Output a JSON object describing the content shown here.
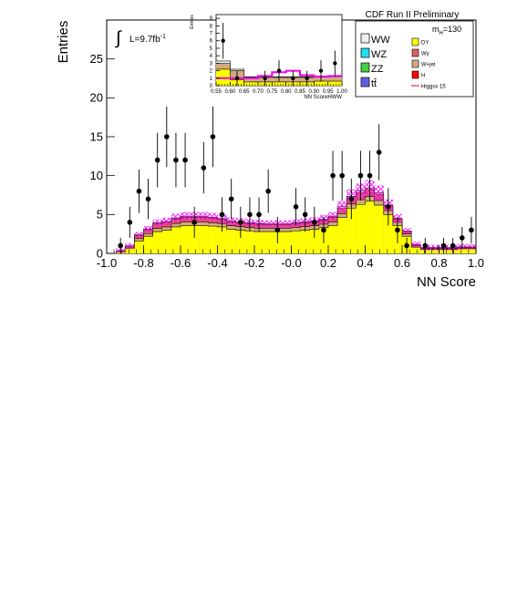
{
  "chart_data": {
    "type": "histogram",
    "title": "CDF Run II Preliminary",
    "xlabel": "NN Score",
    "ylabel": "Entries",
    "xlim": [
      -1.0,
      1.0
    ],
    "ylim": [
      0,
      30
    ],
    "xticks": [
      "-1.0",
      "-0.8",
      "-0.6",
      "-0.4",
      "-0.2",
      "-0.0",
      "0.2",
      "0.4",
      "0.6",
      "0.8",
      "1.0"
    ],
    "yticks": [
      "0",
      "5",
      "10",
      "15",
      "20",
      "25"
    ],
    "luminosity_text": "L=9.7fb",
    "luminosity_sup": "-1",
    "mass_label": "m",
    "mass_sub": "H",
    "mass_value": "=130",
    "legend_left": [
      {
        "name": "WW",
        "color": "#f0f0f0"
      },
      {
        "name": "WZ",
        "color": "#22ddee"
      },
      {
        "name": "ZZ",
        "color": "#44cc44"
      },
      {
        "name": "tt̄",
        "color": "#6060dd"
      }
    ],
    "legend_right": [
      {
        "name": "DY",
        "color": "#ffff00"
      },
      {
        "name": "Wγ",
        "color": "#dd6060"
      },
      {
        "name": "W+jet",
        "color": "#d2aa80"
      },
      {
        "name": "H",
        "color": "#ff0000"
      },
      {
        "name": "Higgsx 15",
        "color": "#ff0000"
      }
    ],
    "bin_edges": [
      -0.95,
      -0.9,
      -0.85,
      -0.8,
      -0.75,
      -0.7,
      -0.65,
      -0.6,
      -0.55,
      -0.5,
      -0.45,
      -0.4,
      -0.35,
      -0.3,
      -0.25,
      -0.2,
      -0.15,
      -0.1,
      -0.05,
      0.0,
      0.05,
      0.1,
      0.15,
      0.2,
      0.25,
      0.3,
      0.35,
      0.4,
      0.45,
      0.5,
      0.55,
      0.6,
      0.65,
      0.7,
      0.75,
      0.8,
      0.85,
      0.9,
      0.95,
      1.0
    ],
    "series": [
      {
        "name": "DY",
        "color": "#ffff00",
        "values": [
          0.2,
          0.6,
          1.6,
          2.2,
          2.8,
          3.0,
          3.4,
          3.6,
          3.6,
          3.6,
          3.5,
          3.4,
          3.1,
          3.0,
          2.9,
          2.8,
          2.8,
          2.8,
          2.8,
          2.9,
          3.0,
          3.1,
          3.3,
          3.6,
          4.6,
          5.8,
          6.3,
          6.7,
          6.2,
          5.0,
          3.6,
          2.2,
          0.8,
          0.5,
          0.5,
          0.5,
          0.5,
          0.6,
          0.6
        ]
      },
      {
        "name": "W+jet",
        "color": "#d2aa80",
        "values": [
          0.05,
          0.2,
          0.3,
          0.35,
          0.4,
          0.4,
          0.45,
          0.45,
          0.45,
          0.45,
          0.45,
          0.45,
          0.45,
          0.45,
          0.45,
          0.45,
          0.45,
          0.45,
          0.45,
          0.45,
          0.45,
          0.45,
          0.45,
          0.45,
          0.5,
          0.55,
          0.6,
          0.6,
          0.6,
          0.5,
          0.4,
          0.3,
          0.15,
          0.1,
          0.1,
          0.1,
          0.1,
          0.1,
          0.1
        ]
      },
      {
        "name": "Wγ",
        "color": "#dd6060",
        "values": [
          0.05,
          0.15,
          0.4,
          0.5,
          0.6,
          0.6,
          0.6,
          0.6,
          0.6,
          0.6,
          0.6,
          0.5,
          0.5,
          0.5,
          0.5,
          0.5,
          0.45,
          0.45,
          0.45,
          0.45,
          0.5,
          0.5,
          0.55,
          0.6,
          0.7,
          0.8,
          0.9,
          0.9,
          0.8,
          0.6,
          0.4,
          0.3,
          0.15,
          0.1,
          0.1,
          0.1,
          0.1,
          0.1,
          0.1
        ]
      },
      {
        "name": "WW",
        "color": "#f0f0f0",
        "values": [
          0.0,
          0.0,
          0.1,
          0.1,
          0.1,
          0.1,
          0.1,
          0.1,
          0.1,
          0.1,
          0.1,
          0.1,
          0.1,
          0.1,
          0.1,
          0.1,
          0.1,
          0.1,
          0.1,
          0.1,
          0.1,
          0.1,
          0.1,
          0.1,
          0.2,
          0.2,
          0.2,
          0.2,
          0.2,
          0.1,
          0.1,
          0.1,
          0.05,
          0.05,
          0.05,
          0.05,
          0.05,
          0.05,
          0.05
        ]
      }
    ],
    "data_points": [
      {
        "x": -0.925,
        "y": 1,
        "err": 1.0
      },
      {
        "x": -0.875,
        "y": 4,
        "err": 2.0
      },
      {
        "x": -0.825,
        "y": 8,
        "err": 2.8
      },
      {
        "x": -0.775,
        "y": 7,
        "err": 2.6
      },
      {
        "x": -0.725,
        "y": 12,
        "err": 3.5
      },
      {
        "x": -0.675,
        "y": 15,
        "err": 3.9
      },
      {
        "x": -0.625,
        "y": 12,
        "err": 3.5
      },
      {
        "x": -0.575,
        "y": 12,
        "err": 3.5
      },
      {
        "x": -0.525,
        "y": 4,
        "err": 2.0
      },
      {
        "x": -0.475,
        "y": 11,
        "err": 3.3
      },
      {
        "x": -0.425,
        "y": 15,
        "err": 3.9
      },
      {
        "x": -0.375,
        "y": 5,
        "err": 2.2
      },
      {
        "x": -0.325,
        "y": 7,
        "err": 2.6
      },
      {
        "x": -0.275,
        "y": 4,
        "err": 2.0
      },
      {
        "x": -0.225,
        "y": 5,
        "err": 2.2
      },
      {
        "x": -0.175,
        "y": 5,
        "err": 2.2
      },
      {
        "x": -0.125,
        "y": 8,
        "err": 2.8
      },
      {
        "x": -0.075,
        "y": 3,
        "err": 1.7
      },
      {
        "x": 0.025,
        "y": 6,
        "err": 2.4
      },
      {
        "x": 0.075,
        "y": 5,
        "err": 2.2
      },
      {
        "x": 0.125,
        "y": 4,
        "err": 2.0
      },
      {
        "x": 0.175,
        "y": 3,
        "err": 1.7
      },
      {
        "x": 0.225,
        "y": 10,
        "err": 3.2
      },
      {
        "x": 0.275,
        "y": 10,
        "err": 3.2
      },
      {
        "x": 0.325,
        "y": 7,
        "err": 2.6
      },
      {
        "x": 0.375,
        "y": 10,
        "err": 3.2
      },
      {
        "x": 0.425,
        "y": 10,
        "err": 3.2
      },
      {
        "x": 0.475,
        "y": 13,
        "err": 3.6
      },
      {
        "x": 0.525,
        "y": 6,
        "err": 2.4
      },
      {
        "x": 0.575,
        "y": 3,
        "err": 1.7
      },
      {
        "x": 0.625,
        "y": 1,
        "err": 1.0
      },
      {
        "x": 0.725,
        "y": 1,
        "err": 1.0
      },
      {
        "x": 0.825,
        "y": 1,
        "err": 1.0
      },
      {
        "x": 0.875,
        "y": 1,
        "err": 1.0
      },
      {
        "x": 0.925,
        "y": 2,
        "err": 1.4
      },
      {
        "x": 0.975,
        "y": 3,
        "err": 1.7
      }
    ],
    "inset": {
      "xlabel": "NN ScoreHWW",
      "ylabel": "Entries",
      "xlim": [
        0.55,
        1.0
      ],
      "ylim": [
        0,
        9.5
      ],
      "xticks": [
        "0.55",
        "0.60",
        "0.65",
        "0.70",
        "0.75",
        "0.80",
        "0.85",
        "0.90",
        "0.95",
        "1.00"
      ],
      "yticks": [
        "0",
        "1",
        "2",
        "3",
        "4",
        "5",
        "6",
        "7",
        "8",
        "9"
      ],
      "bin_edges": [
        0.55,
        0.6,
        0.65,
        0.7,
        0.75,
        0.8,
        0.85,
        0.9,
        0.95,
        1.0
      ],
      "series": [
        {
          "name": "DY",
          "color": "#ffff00",
          "values": [
            2.2,
            0.8,
            0.5,
            0.5,
            0.5,
            0.5,
            0.5,
            0.6,
            0.6
          ]
        },
        {
          "name": "W+jet",
          "color": "#d2aa80",
          "values": [
            0.8,
            1.2,
            0.6,
            0.6,
            0.6,
            0.6,
            0.6,
            0.6,
            0.6
          ]
        },
        {
          "name": "WW",
          "color": "#f0f0f0",
          "values": [
            0.3,
            0.2,
            0.1,
            0.1,
            0.1,
            0.1,
            0.1,
            0.1,
            0.1
          ]
        }
      ],
      "higgs": [
        1.0,
        1.0,
        1.0,
        1.3,
        1.8,
        2.0,
        1.4,
        1.2,
        1.3
      ],
      "data_points": [
        {
          "x": 0.575,
          "y": 6,
          "err": 2.4
        },
        {
          "x": 0.625,
          "y": 1,
          "err": 1.0
        },
        {
          "x": 0.725,
          "y": 1,
          "err": 1.0
        },
        {
          "x": 0.775,
          "y": 2,
          "err": 1.4
        },
        {
          "x": 0.825,
          "y": 1,
          "err": 1.0
        },
        {
          "x": 0.875,
          "y": 1,
          "err": 1.0
        },
        {
          "x": 0.925,
          "y": 2,
          "err": 1.4
        },
        {
          "x": 0.975,
          "y": 3,
          "err": 1.7
        }
      ]
    }
  }
}
